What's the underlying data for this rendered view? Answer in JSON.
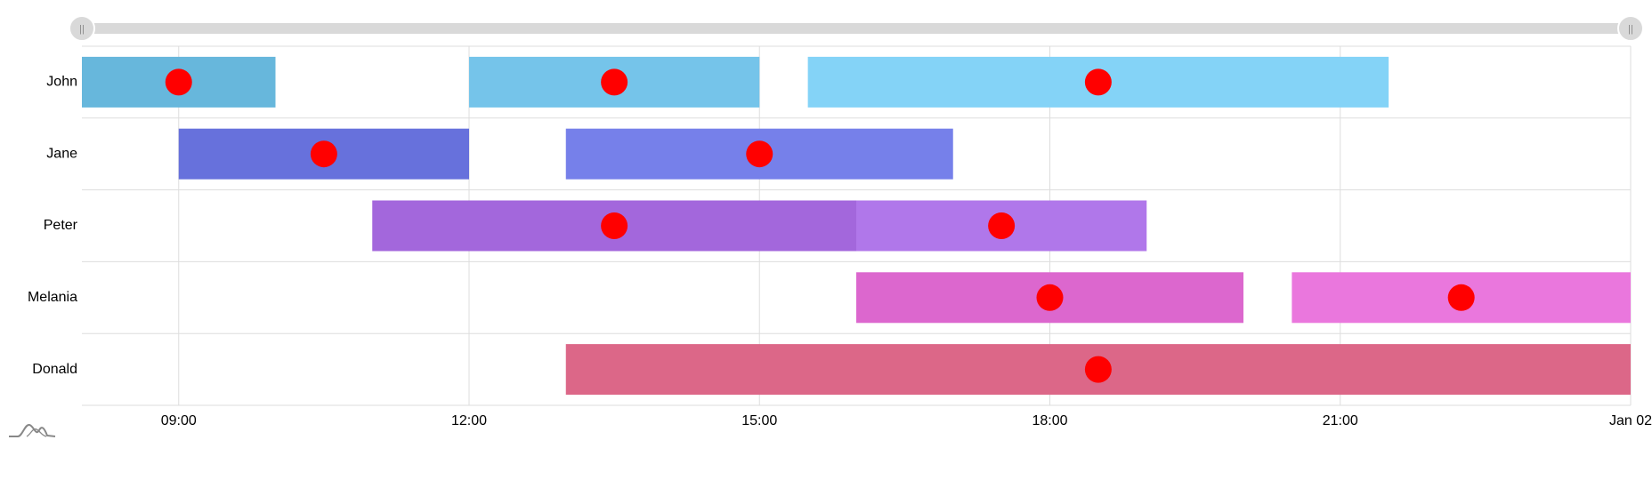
{
  "chart_data": {
    "type": "gantt",
    "categories": [
      "John",
      "Jane",
      "Peter",
      "Melania",
      "Donald"
    ],
    "x_axis": {
      "min": "08:00",
      "max": "Jan 02",
      "tick_values": [
        "09:00",
        "12:00",
        "15:00",
        "18:00",
        "21:00",
        "24:00"
      ],
      "tick_labels": [
        "09:00",
        "12:00",
        "15:00",
        "18:00",
        "21:00",
        "Jan 02"
      ],
      "grid": true
    },
    "bars": [
      {
        "category": "John",
        "start": "08:00",
        "end": "10:00",
        "marker": "09:00",
        "color": "#67b7dc"
      },
      {
        "category": "John",
        "start": "12:00",
        "end": "15:00",
        "marker": "13:30",
        "color": "#75c4ea"
      },
      {
        "category": "John",
        "start": "15:30",
        "end": "21:30",
        "marker": "18:30",
        "color": "#84d3f7"
      },
      {
        "category": "Jane",
        "start": "09:00",
        "end": "12:00",
        "marker": "10:30",
        "color": "#6771dc"
      },
      {
        "category": "Jane",
        "start": "13:00",
        "end": "17:00",
        "marker": "15:00",
        "color": "#7680ea"
      },
      {
        "category": "Peter",
        "start": "11:00",
        "end": "16:00",
        "marker": "13:30",
        "color": "#a367dc"
      },
      {
        "category": "Peter",
        "start": "16:00",
        "end": "19:00",
        "marker": "17:30",
        "color": "#b077ea"
      },
      {
        "category": "Melania",
        "start": "16:00",
        "end": "20:00",
        "marker": "18:00",
        "color": "#dc67ce"
      },
      {
        "category": "Melania",
        "start": "20:30",
        "end": "24:00",
        "marker": "22:15",
        "color": "#ea77dd"
      },
      {
        "category": "Donald",
        "start": "13:00",
        "end": "24:00",
        "marker": "18:30",
        "color": "#dc6788"
      }
    ],
    "marker_color": "#ff0000",
    "scrollbar": {
      "start": 0,
      "end": 1,
      "grip_symbol": "||"
    }
  },
  "colors": {
    "grid": "#dddddd",
    "scrollbar_track": "#d9d9d9",
    "grip_fill": "#d9d9d9",
    "grip_stroke": "#ffffff",
    "grip_symbol": "#888888",
    "logo": "#888888"
  },
  "icons": {
    "logo": "amcharts-logo-icon"
  }
}
